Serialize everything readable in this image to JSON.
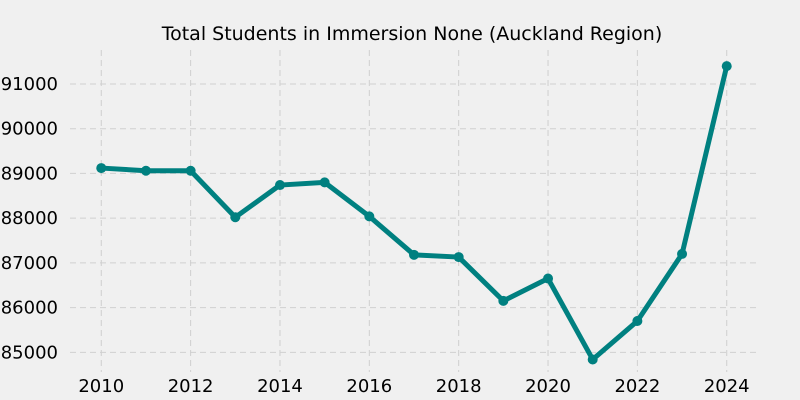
{
  "chart_data": {
    "type": "line",
    "title": "Total Students in Immersion None (Auckland Region)",
    "xlabel": "",
    "ylabel": "",
    "x": [
      2010,
      2011,
      2012,
      2013,
      2014,
      2015,
      2016,
      2017,
      2018,
      2019,
      2020,
      2021,
      2022,
      2023,
      2024
    ],
    "series": [
      {
        "values": [
          89120,
          89060,
          89060,
          88020,
          88740,
          88800,
          88040,
          87180,
          87130,
          86150,
          86650,
          84840,
          85700,
          87200,
          91400
        ]
      }
    ],
    "xlim": [
      2009.3,
      2024.7
    ],
    "ylim": [
      84560,
      91760
    ],
    "x_ticks": [
      2010,
      2012,
      2014,
      2016,
      2018,
      2020,
      2022,
      2024
    ],
    "y_ticks": [
      85000,
      86000,
      87000,
      88000,
      89000,
      90000,
      91000
    ],
    "grid": true,
    "legend": "none",
    "colors": {
      "background": "#f0f0f0",
      "line": "#008080",
      "grid": "#cfcfcf"
    }
  }
}
